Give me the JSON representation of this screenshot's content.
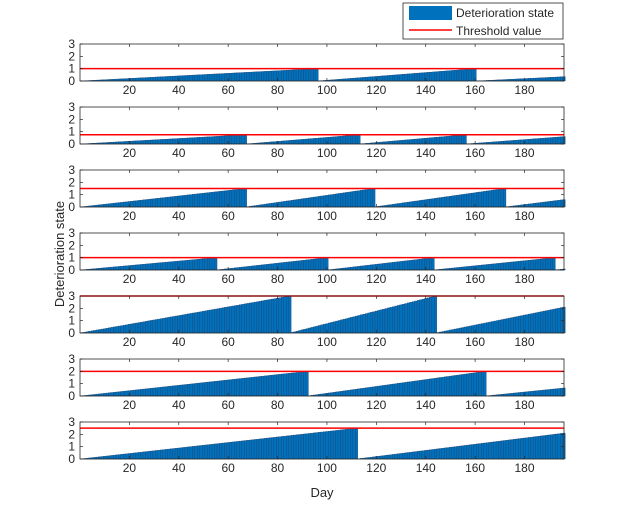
{
  "figure": {
    "xlabel": "Day",
    "ylabel": "Deterioration state"
  },
  "legend": {
    "placement": "top-right",
    "entries": [
      {
        "label": "Deterioration state",
        "kind": "bar",
        "color": "#0072BD"
      },
      {
        "label": "Threshold value",
        "kind": "line",
        "color": "#FF0000"
      }
    ]
  },
  "colors": {
    "bar": "#0072BD",
    "threshold": "#FF0000",
    "axis": "#262626"
  },
  "chart_data": [
    {
      "type": "bar",
      "xlim": [
        0,
        196
      ],
      "ylim": [
        0,
        3
      ],
      "xticks": [
        20,
        40,
        60,
        80,
        100,
        120,
        140,
        160,
        180
      ],
      "yticks": [
        0,
        1,
        2,
        3
      ],
      "threshold": 1.0,
      "cycles": [
        {
          "start": 1,
          "end": 96,
          "peak": 1.0
        },
        {
          "start": 97,
          "end": 160,
          "peak": 1.0
        },
        {
          "start": 161,
          "end": 196,
          "peak": 0.35
        }
      ]
    },
    {
      "type": "bar",
      "xlim": [
        0,
        196
      ],
      "ylim": [
        0,
        3
      ],
      "xticks": [
        20,
        40,
        60,
        80,
        100,
        120,
        140,
        160,
        180
      ],
      "yticks": [
        0,
        1,
        2,
        3
      ],
      "threshold": 0.75,
      "cycles": [
        {
          "start": 1,
          "end": 67,
          "peak": 0.75
        },
        {
          "start": 68,
          "end": 113,
          "peak": 0.75
        },
        {
          "start": 114,
          "end": 156,
          "peak": 0.75
        },
        {
          "start": 157,
          "end": 196,
          "peak": 0.6
        }
      ]
    },
    {
      "type": "bar",
      "xlim": [
        0,
        196
      ],
      "ylim": [
        0,
        3
      ],
      "xticks": [
        20,
        40,
        60,
        80,
        100,
        120,
        140,
        160,
        180
      ],
      "yticks": [
        0,
        1,
        2,
        3
      ],
      "threshold": 1.5,
      "cycles": [
        {
          "start": 1,
          "end": 67,
          "peak": 1.5
        },
        {
          "start": 68,
          "end": 119,
          "peak": 1.5
        },
        {
          "start": 120,
          "end": 172,
          "peak": 1.5
        },
        {
          "start": 173,
          "end": 196,
          "peak": 0.6
        }
      ]
    },
    {
      "type": "bar",
      "xlim": [
        0,
        196
      ],
      "ylim": [
        0,
        3
      ],
      "xticks": [
        20,
        40,
        60,
        80,
        100,
        120,
        140,
        160,
        180
      ],
      "yticks": [
        0,
        1,
        2,
        3
      ],
      "threshold": 1.0,
      "cycles": [
        {
          "start": 1,
          "end": 55,
          "peak": 1.0
        },
        {
          "start": 56,
          "end": 100,
          "peak": 1.0
        },
        {
          "start": 101,
          "end": 143,
          "peak": 1.0
        },
        {
          "start": 144,
          "end": 192,
          "peak": 1.0
        },
        {
          "start": 193,
          "end": 196,
          "peak": 0.08
        }
      ]
    },
    {
      "type": "bar",
      "xlim": [
        0,
        196
      ],
      "ylim": [
        0,
        3
      ],
      "xticks": [
        20,
        40,
        60,
        80,
        100,
        120,
        140,
        160,
        180
      ],
      "yticks": [
        0,
        1,
        2,
        3
      ],
      "threshold": 3.0,
      "cycles": [
        {
          "start": 1,
          "end": 85,
          "peak": 3.0
        },
        {
          "start": 86,
          "end": 144,
          "peak": 3.0
        },
        {
          "start": 145,
          "end": 196,
          "peak": 2.1
        }
      ]
    },
    {
      "type": "bar",
      "xlim": [
        0,
        196
      ],
      "ylim": [
        0,
        3
      ],
      "xticks": [
        20,
        40,
        60,
        80,
        100,
        120,
        140,
        160,
        180
      ],
      "yticks": [
        0,
        1,
        2,
        3
      ],
      "threshold": 2.0,
      "cycles": [
        {
          "start": 1,
          "end": 92,
          "peak": 2.0
        },
        {
          "start": 93,
          "end": 164,
          "peak": 2.0
        },
        {
          "start": 165,
          "end": 196,
          "peak": 0.65
        }
      ]
    },
    {
      "type": "bar",
      "xlim": [
        0,
        196
      ],
      "ylim": [
        0,
        3
      ],
      "xticks": [
        20,
        40,
        60,
        80,
        100,
        120,
        140,
        160,
        180
      ],
      "yticks": [
        0,
        1,
        2,
        3
      ],
      "threshold": 2.5,
      "cycles": [
        {
          "start": 1,
          "end": 112,
          "peak": 2.5
        },
        {
          "start": 113,
          "end": 196,
          "peak": 2.1
        }
      ]
    }
  ]
}
